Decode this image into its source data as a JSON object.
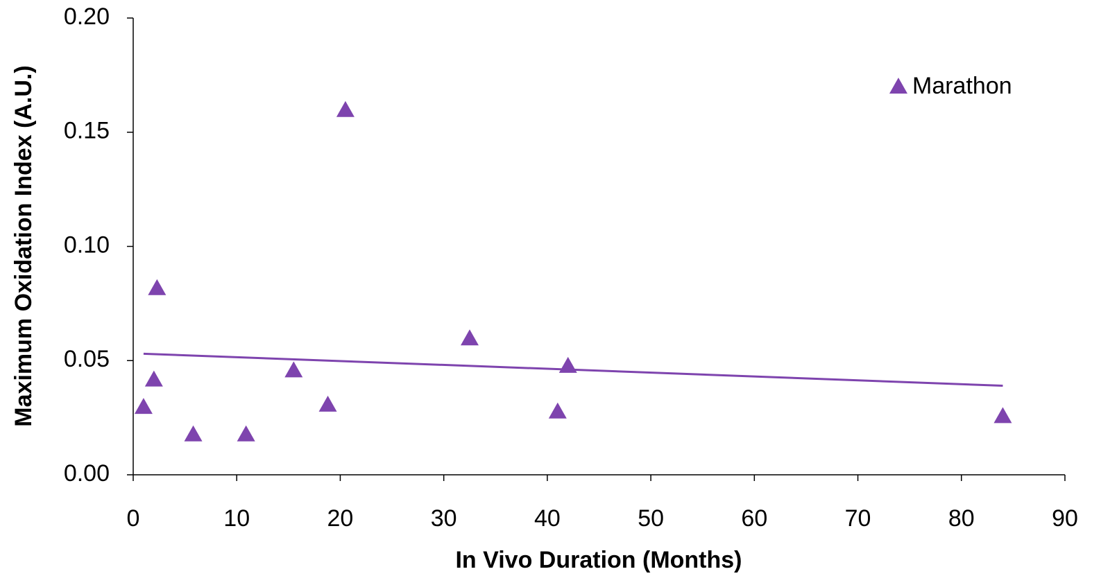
{
  "chart_data": {
    "type": "scatter",
    "x_label": "In Vivo Duration (Months)",
    "y_label": "Maximum Oxidation Index (A.U.)",
    "series": [
      {
        "name": "Marathon",
        "color": "#7e44ae",
        "x": [
          1.0,
          2.0,
          2.3,
          5.8,
          10.9,
          15.5,
          18.8,
          20.5,
          32.5,
          41.0,
          42.0,
          84.0
        ],
        "values": [
          0.03,
          0.042,
          0.082,
          0.018,
          0.018,
          0.046,
          0.031,
          0.16,
          0.06,
          0.028,
          0.048,
          0.026
        ]
      }
    ],
    "trendline": {
      "color": "#7e44ae",
      "x": [
        1,
        84
      ],
      "values": [
        0.053,
        0.039
      ]
    },
    "xlim": [
      0,
      90
    ],
    "xticks": [
      0,
      10,
      20,
      30,
      40,
      50,
      60,
      70,
      80,
      90
    ],
    "ylim": [
      0,
      0.2
    ],
    "yticks": [
      {
        "value": 0,
        "label": "0.00"
      },
      0.05,
      {
        "value": 0.1,
        "label": "0.10"
      },
      0.15,
      {
        "value": 0.2,
        "label": "0.20"
      }
    ],
    "legend": "top-right"
  }
}
